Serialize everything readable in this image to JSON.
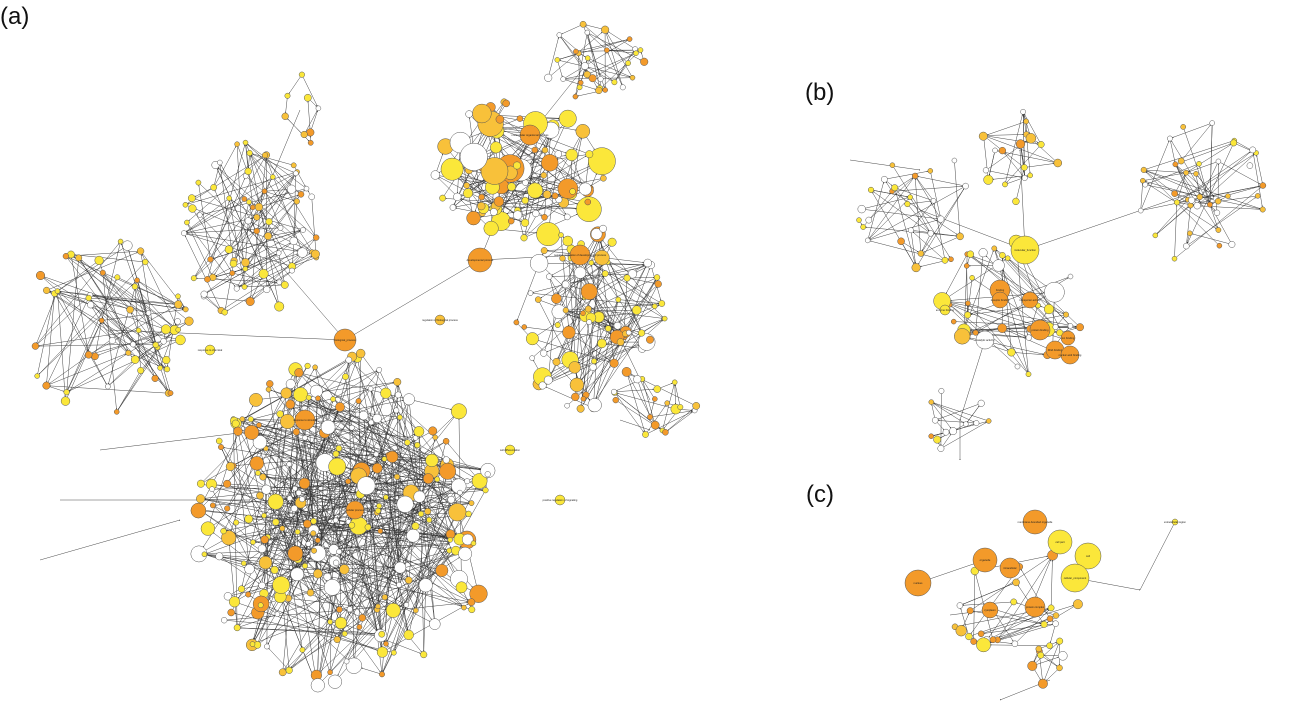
{
  "panels": [
    {
      "label": "(a)",
      "key_labels": [
        {
          "text": "biological_process"
        },
        {
          "text": "developmental process"
        },
        {
          "text": "negative regulation of developmental process"
        },
        {
          "text": "response to stimulus"
        },
        {
          "text": "cellular process"
        },
        {
          "text": "multicellular organismal process"
        },
        {
          "text": "regulation of biological process"
        },
        {
          "text": "response to chemical"
        },
        {
          "text": "cell differentiation"
        },
        {
          "text": "positive regulation of signaling"
        }
      ]
    },
    {
      "label": "(b)",
      "key_labels": [
        {
          "text": "molecular_function"
        },
        {
          "text": "binding"
        },
        {
          "text": "protein binding"
        },
        {
          "text": "DNA binding"
        },
        {
          "text": "nucleic acid binding"
        },
        {
          "text": "catalytic activity"
        },
        {
          "text": "receptor binding"
        },
        {
          "text": "transporter activity"
        },
        {
          "text": "ion binding"
        },
        {
          "text": "enzyme binding"
        }
      ]
    },
    {
      "label": "(c)",
      "key_labels": [
        {
          "text": "cell part"
        },
        {
          "text": "cell"
        },
        {
          "text": "cellular_component"
        },
        {
          "text": "intracellular"
        },
        {
          "text": "nucleus"
        },
        {
          "text": "organelle"
        },
        {
          "text": "membrane-bounded organelle"
        },
        {
          "text": "protein complex"
        },
        {
          "text": "cytoplasm"
        },
        {
          "text": "extracellular region"
        }
      ]
    }
  ],
  "colors": {
    "high": "#f39a2a",
    "mid": "#f8c13a",
    "low": "#fbe73a",
    "none": "#ffffff",
    "edge": "#333333",
    "node_stroke": "#555555"
  }
}
